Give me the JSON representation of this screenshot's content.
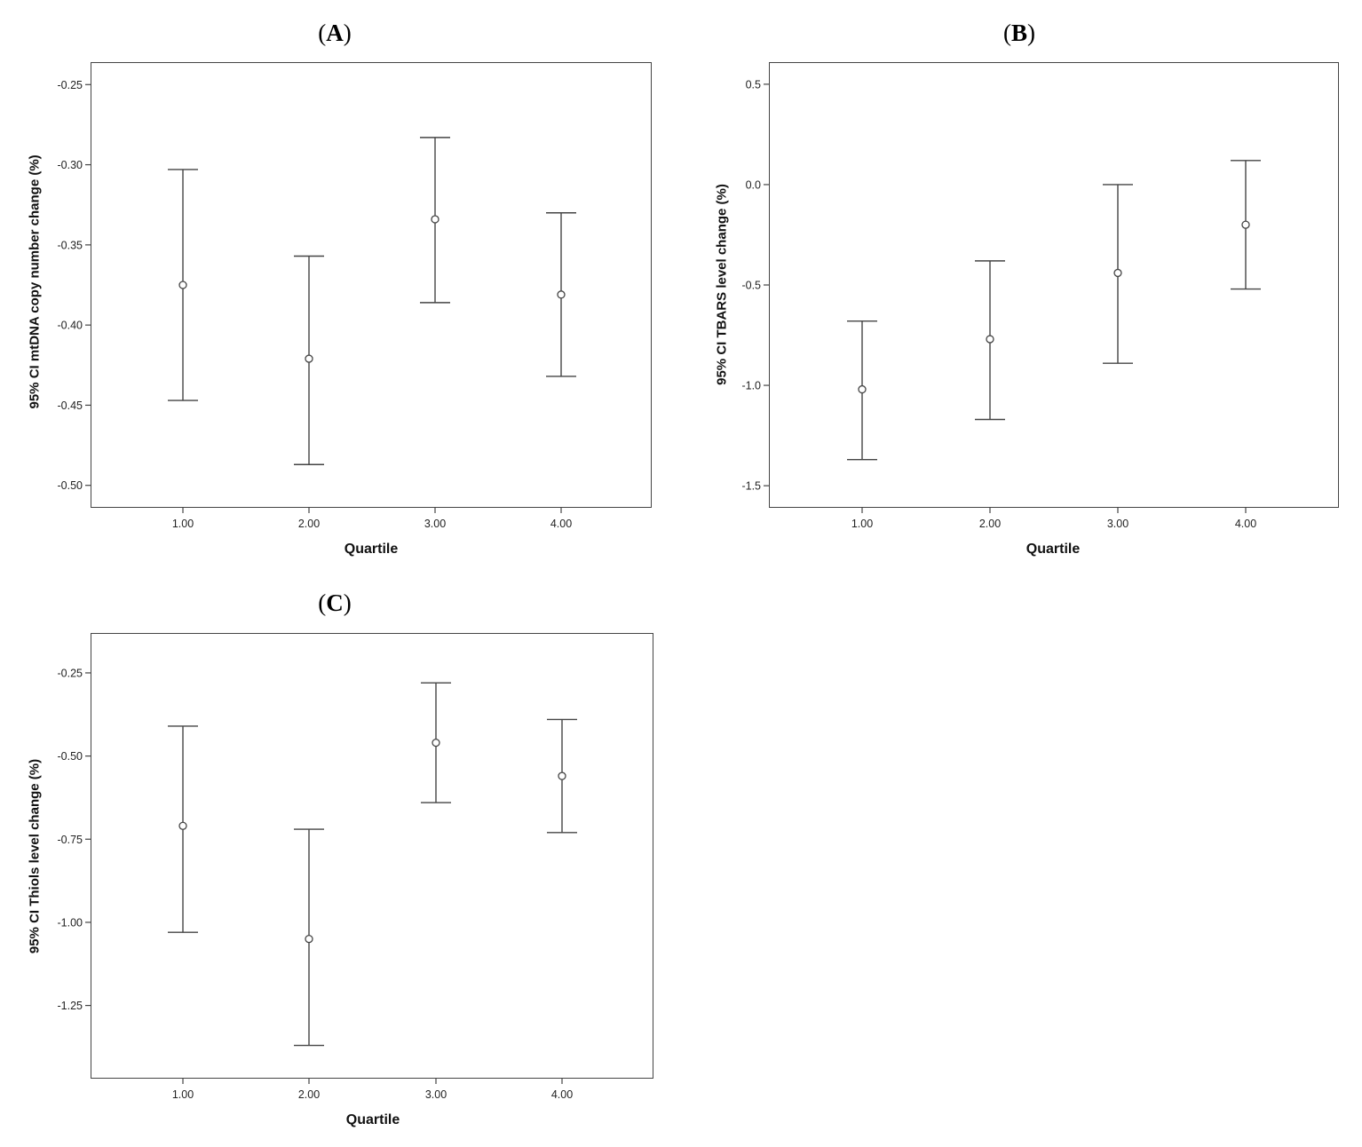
{
  "chart_data": [
    {
      "type": "errorbar",
      "panel_label": "A",
      "title": "",
      "xlabel": "Quartile",
      "ylabel": "95% CI mtDNA copy number change (%)",
      "categories": [
        "1.00",
        "2.00",
        "3.00",
        "4.00"
      ],
      "yticks": [
        "-0.25",
        "-0.30",
        "-0.35",
        "-0.40",
        "-0.45",
        "-0.50"
      ],
      "ylim": [
        -0.514,
        -0.236
      ],
      "series": [
        {
          "mean": [
            -0.375,
            -0.421,
            -0.334,
            -0.381
          ],
          "lower": [
            -0.447,
            -0.487,
            -0.386,
            -0.432
          ],
          "upper": [
            -0.303,
            -0.357,
            -0.283,
            -0.33
          ]
        }
      ]
    },
    {
      "type": "errorbar",
      "panel_label": "B",
      "title": "",
      "xlabel": "Quartile",
      "ylabel": "95% CI TBARS level change (%)",
      "categories": [
        "1.00",
        "2.00",
        "3.00",
        "4.00"
      ],
      "yticks": [
        "0.5",
        "0.0",
        "-0.5",
        "-1.0",
        "-1.5"
      ],
      "ylim": [
        -1.61,
        0.61
      ],
      "series": [
        {
          "mean": [
            -1.02,
            -0.77,
            -0.44,
            -0.2
          ],
          "lower": [
            -1.37,
            -1.17,
            -0.89,
            -0.52
          ],
          "upper": [
            -0.68,
            -0.38,
            0.0,
            0.12
          ]
        }
      ]
    },
    {
      "type": "errorbar",
      "panel_label": "C",
      "title": "",
      "xlabel": "Quartile",
      "ylabel": "95% CI Thiols level change (%)",
      "categories": [
        "1.00",
        "2.00",
        "3.00",
        "4.00"
      ],
      "yticks": [
        "-0.25",
        "-0.50",
        "-0.75",
        "-1.00",
        "-1.25"
      ],
      "ylim": [
        -1.47,
        -0.13
      ],
      "series": [
        {
          "mean": [
            -0.71,
            -1.05,
            -0.46,
            -0.56
          ],
          "lower": [
            -1.03,
            -1.37,
            -0.64,
            -0.73
          ],
          "upper": [
            -0.41,
            -0.72,
            -0.28,
            -0.39
          ]
        }
      ]
    }
  ]
}
